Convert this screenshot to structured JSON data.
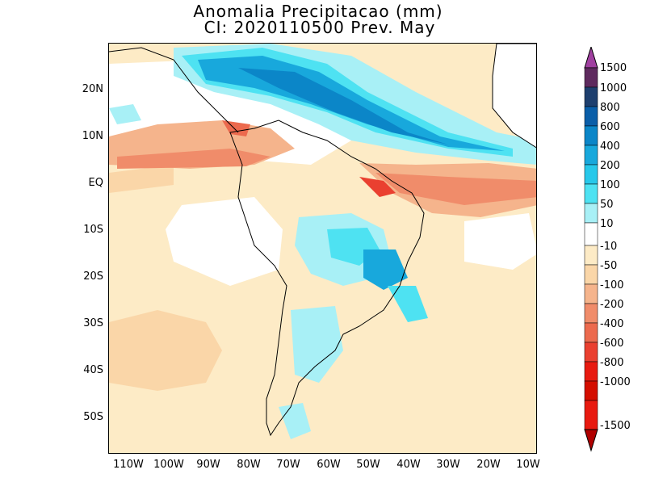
{
  "title": "Anomalia Precipitacao (mm)",
  "subtitle": "CI: 2020110500 Prev. May",
  "lat_labels": [
    "20N",
    "10N",
    "EQ",
    "10S",
    "20S",
    "30S",
    "40S",
    "50S"
  ],
  "lon_labels": [
    "110W",
    "100W",
    "90W",
    "80W",
    "70W",
    "60W",
    "50W",
    "40W",
    "30W",
    "20W",
    "10W"
  ],
  "legend": {
    "levels": [
      "1500",
      "1000",
      "800",
      "600",
      "400",
      "200",
      "100",
      "50",
      "10",
      "-10",
      "-50",
      "-100",
      "-200",
      "-400",
      "-600",
      "-800",
      "-1000",
      "-1500"
    ],
    "colors": {
      "gt1500": "#a040a0",
      "1000_1500": "#5e2a5e",
      "800_1000": "#1e3f6e",
      "600_800": "#0a5ea8",
      "400_600": "#0b86c8",
      "200_400": "#18a8dc",
      "100_200": "#27c8ea",
      "50_100": "#4ee2f2",
      "10_50": "#a8f0f6",
      "m10_10": "#ffffff",
      "m50_m10": "#fdebc6",
      "m100_m50": "#fad6a8",
      "m200_m100": "#f5b48c",
      "m400_m200": "#f08c6a",
      "m600_m400": "#ec6a4e",
      "m800_m600": "#ea4030",
      "m1000_m800": "#e81a10",
      "m1500_m1000": "#d40e00",
      "lt_m1500": "#b00000"
    }
  }
}
